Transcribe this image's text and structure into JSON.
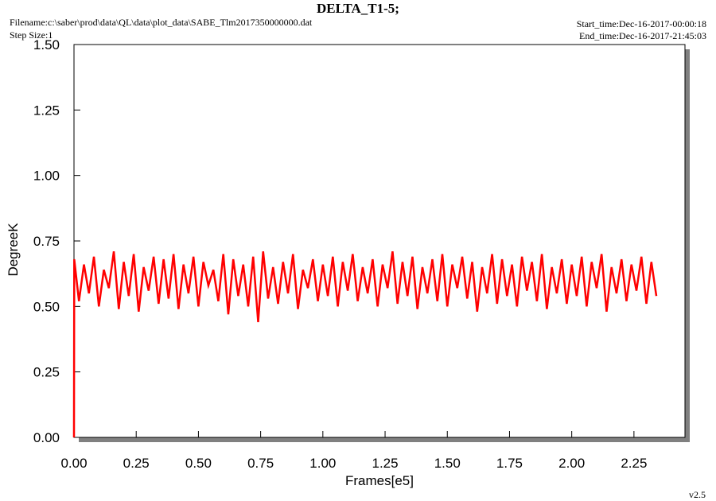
{
  "header": {
    "filename": "Filename:c:\\saber\\prod\\data\\QL\\data\\plot_data\\SABE_Tlm2017350000000.dat",
    "step_size": "Step Size:1",
    "start_time": "Start_time:Dec-16-2017-00:00:18",
    "end_time": "End_time:Dec-16-2017-21:45:03",
    "version": "v2.5"
  },
  "chart_data": {
    "type": "line",
    "title": "DELTA_T1-5;",
    "x_label": "Frames[e5]",
    "y_label": "DegreeK",
    "xlim": [
      0,
      2.455
    ],
    "ylim": [
      0,
      1.5
    ],
    "xticks": [
      {
        "value": 0,
        "label": "0.00"
      },
      {
        "value": 0.25,
        "label": "0.25"
      },
      {
        "value": 0.5,
        "label": "0.50"
      },
      {
        "value": 0.75,
        "label": "0.75"
      },
      {
        "value": 1,
        "label": "1.00"
      },
      {
        "value": 1.25,
        "label": "1.25"
      },
      {
        "value": 1.5,
        "label": "1.50"
      },
      {
        "value": 1.75,
        "label": "1.75"
      },
      {
        "value": 2,
        "label": "2.00"
      },
      {
        "value": 2.25,
        "label": "2.25"
      }
    ],
    "yticks": [
      {
        "value": 0,
        "label": "0.00"
      },
      {
        "value": 0.25,
        "label": "0.25"
      },
      {
        "value": 0.5,
        "label": "0.50"
      },
      {
        "value": 0.75,
        "label": "0.75"
      },
      {
        "value": 1,
        "label": "1.00"
      },
      {
        "value": 1.25,
        "label": "1.25"
      },
      {
        "value": 1.5,
        "label": "1.50"
      }
    ],
    "x": [
      0,
      0.001,
      0.02,
      0.04,
      0.06,
      0.08,
      0.1,
      0.12,
      0.14,
      0.16,
      0.18,
      0.2,
      0.22,
      0.24,
      0.26,
      0.28,
      0.3,
      0.32,
      0.34,
      0.36,
      0.38,
      0.4,
      0.42,
      0.44,
      0.46,
      0.48,
      0.5,
      0.52,
      0.54,
      0.56,
      0.58,
      0.6,
      0.62,
      0.64,
      0.66,
      0.68,
      0.7,
      0.72,
      0.74,
      0.76,
      0.78,
      0.8,
      0.82,
      0.84,
      0.86,
      0.88,
      0.9,
      0.92,
      0.94,
      0.96,
      0.98,
      1,
      1.02,
      1.04,
      1.06,
      1.08,
      1.1,
      1.12,
      1.14,
      1.16,
      1.18,
      1.2,
      1.22,
      1.24,
      1.26,
      1.28,
      1.3,
      1.32,
      1.34,
      1.36,
      1.38,
      1.4,
      1.42,
      1.44,
      1.46,
      1.48,
      1.5,
      1.52,
      1.54,
      1.56,
      1.58,
      1.6,
      1.62,
      1.64,
      1.66,
      1.68,
      1.7,
      1.72,
      1.74,
      1.76,
      1.78,
      1.8,
      1.82,
      1.84,
      1.86,
      1.88,
      1.9,
      1.92,
      1.94,
      1.96,
      1.98,
      2,
      2.02,
      2.04,
      2.06,
      2.08,
      2.1,
      2.12,
      2.14,
      2.16,
      2.18,
      2.2,
      2.22,
      2.24,
      2.26,
      2.28,
      2.3,
      2.32,
      2.34
    ],
    "series": [
      {
        "color": "#ff0000",
        "values": [
          0,
          0.68,
          0.52,
          0.66,
          0.55,
          0.69,
          0.5,
          0.64,
          0.57,
          0.71,
          0.49,
          0.67,
          0.54,
          0.7,
          0.48,
          0.65,
          0.56,
          0.69,
          0.51,
          0.68,
          0.53,
          0.7,
          0.49,
          0.66,
          0.55,
          0.69,
          0.5,
          0.67,
          0.58,
          0.64,
          0.52,
          0.7,
          0.47,
          0.68,
          0.54,
          0.66,
          0.5,
          0.69,
          0.44,
          0.71,
          0.53,
          0.65,
          0.51,
          0.67,
          0.55,
          0.7,
          0.49,
          0.64,
          0.57,
          0.68,
          0.52,
          0.66,
          0.54,
          0.69,
          0.5,
          0.67,
          0.56,
          0.7,
          0.52,
          0.65,
          0.55,
          0.68,
          0.5,
          0.66,
          0.57,
          0.71,
          0.51,
          0.67,
          0.54,
          0.69,
          0.49,
          0.65,
          0.55,
          0.68,
          0.52,
          0.7,
          0.5,
          0.66,
          0.57,
          0.69,
          0.53,
          0.67,
          0.48,
          0.65,
          0.55,
          0.7,
          0.51,
          0.68,
          0.54,
          0.66,
          0.5,
          0.69,
          0.56,
          0.67,
          0.52,
          0.7,
          0.49,
          0.65,
          0.55,
          0.68,
          0.51,
          0.66,
          0.54,
          0.69,
          0.5,
          0.67,
          0.57,
          0.7,
          0.48,
          0.65,
          0.55,
          0.68,
          0.52,
          0.66,
          0.56,
          0.69,
          0.51,
          0.67,
          0.54
        ]
      }
    ]
  }
}
